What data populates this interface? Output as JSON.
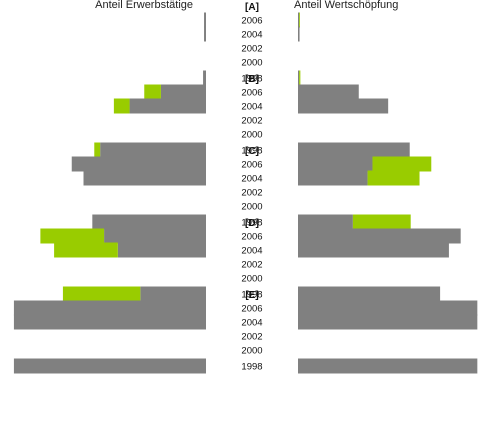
{
  "chart_data": {
    "type": "bar",
    "left_header": "Anteil Erwerbstätige",
    "right_header": "Anteil Wertschöpfung",
    "colors": {
      "gray": "#808080",
      "green": "#99cc00"
    },
    "groups": [
      {
        "label": "[A]",
        "rows": [
          {
            "year": "2006",
            "left": {
              "gray": 0.01,
              "green": 0.0
            },
            "right": {
              "gray": 0.006,
              "green": 0.004
            }
          },
          {
            "year": "2004",
            "left": {
              "gray": 0.01,
              "green": 0.0
            },
            "right": {
              "gray": 0.008,
              "green": 0.0
            }
          },
          {
            "year": "2002",
            "left": null,
            "right": null
          },
          {
            "year": "2000",
            "left": null,
            "right": null
          },
          {
            "year": "1998",
            "left": {
              "gray": 0.015,
              "green": 0.0
            },
            "right": {
              "gray": 0.006,
              "green": 0.006
            }
          }
        ]
      },
      {
        "label": "[B]",
        "rows": [
          {
            "year": "2006",
            "left": {
              "gray": 0.23,
              "green": 0.085
            },
            "right": {
              "gray": 0.31,
              "green": 0.0
            }
          },
          {
            "year": "2004",
            "left": {
              "gray": 0.39,
              "green": 0.08
            },
            "right": {
              "gray": 0.46,
              "green": 0.0
            }
          },
          {
            "year": "2002",
            "left": null,
            "right": null
          },
          {
            "year": "2000",
            "left": null,
            "right": null
          },
          {
            "year": "1998",
            "left": {
              "gray": 0.54,
              "green": 0.03
            },
            "right": {
              "gray": 0.57,
              "green": 0.0
            }
          }
        ]
      },
      {
        "label": "[C]",
        "rows": [
          {
            "year": "2006",
            "left": {
              "gray": 0.685,
              "green": 0.0
            },
            "right": {
              "gray": 0.38,
              "green": 0.3
            }
          },
          {
            "year": "2004",
            "left": {
              "gray": 0.625,
              "green": 0.0
            },
            "right": {
              "gray": 0.355,
              "green": 0.265
            }
          },
          {
            "year": "2002",
            "left": null,
            "right": null
          },
          {
            "year": "2000",
            "left": null,
            "right": null
          },
          {
            "year": "1998",
            "left": {
              "gray": 0.58,
              "green": 0.0
            },
            "right": {
              "gray": 0.28,
              "green": 0.295
            }
          }
        ]
      },
      {
        "label": "[D]",
        "rows": [
          {
            "year": "2006",
            "left": {
              "gray": 0.52,
              "green": 0.325
            },
            "right": {
              "gray": 0.83,
              "green": 0.0
            }
          },
          {
            "year": "2004",
            "left": {
              "gray": 0.45,
              "green": 0.325
            },
            "right": {
              "gray": 0.77,
              "green": 0.0
            }
          },
          {
            "year": "2002",
            "left": null,
            "right": null
          },
          {
            "year": "2000",
            "left": null,
            "right": null
          },
          {
            "year": "1998",
            "left": {
              "gray": 0.335,
              "green": 0.395
            },
            "right": {
              "gray": 0.725,
              "green": 0.0
            }
          }
        ]
      },
      {
        "label": "[E]",
        "rows": [
          {
            "year": "2006",
            "left": {
              "gray": 0.98,
              "green": 0.0
            },
            "right": {
              "gray": 0.915,
              "green": 0.0
            }
          },
          {
            "year": "2004",
            "left": {
              "gray": 0.98,
              "green": 0.0
            },
            "right": {
              "gray": 0.915,
              "green": 0.0
            }
          },
          {
            "year": "2002",
            "left": null,
            "right": null
          },
          {
            "year": "2000",
            "left": null,
            "right": null
          },
          {
            "year": "1998",
            "left": {
              "gray": 0.98,
              "green": 0.0
            },
            "right": {
              "gray": 0.915,
              "green": 0.0
            }
          }
        ]
      }
    ]
  }
}
